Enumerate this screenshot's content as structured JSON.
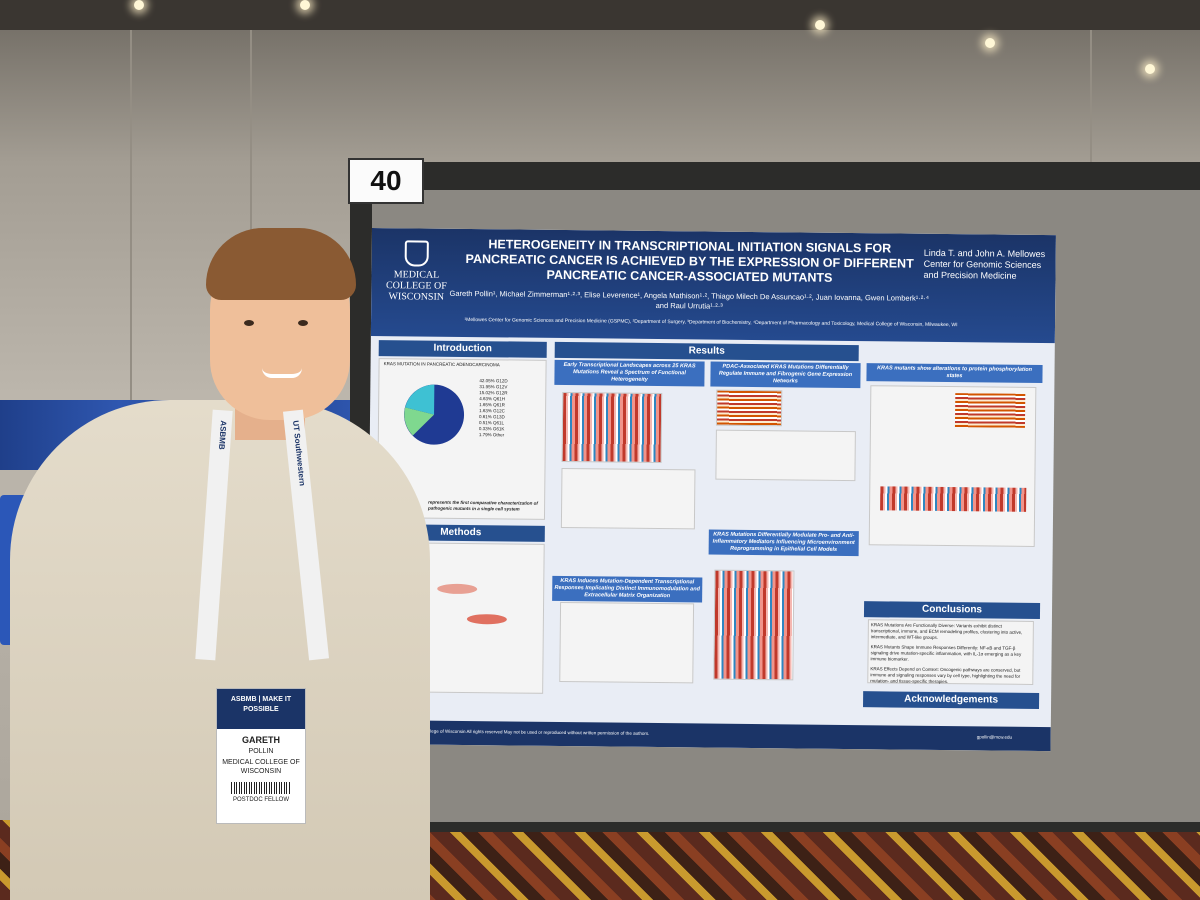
{
  "booth": {
    "number": "40"
  },
  "poster": {
    "title": "HETEROGENEITY IN TRANSCRIPTIONAL INITIATION SIGNALS FOR PANCREATIC CANCER IS ACHIEVED BY THE EXPRESSION OF DIFFERENT PANCREATIC CANCER-ASSOCIATED MUTANTS",
    "logo_left": "MEDICAL COLLEGE OF WISCONSIN",
    "logo_right": "Linda T. and John A. Mellowes Center for Genomic Sciences and Precision Medicine",
    "authors": "Gareth Pollin¹, Michael Zimmerman¹·²·³, Elise Leverence¹, Angela Mathison¹·², Thiago Milech De Assuncao¹·², Juan Iovanna, Gwen Lomberk¹·²·⁴ and Raul Urrutia¹·²·³",
    "affiliations": "¹Mellowes Center for Genomic Sciences and Precision Medicine (GSPMC), ²Department of Surgery, ³Department of Biochemistry, ⁴Department of Pharmacology and Toxicology, Medical College of Wisconsin, Milwaukee, WI",
    "sections": {
      "introduction": "Introduction",
      "results": "Results",
      "methods": "Methods",
      "conclusions": "Conclusions",
      "acknowledgements": "Acknowledgements"
    },
    "pie_title": "KRAS MUTATION IN PANCREATIC ADENOCARCINOMA",
    "pie_legend": [
      "42.05% G12D",
      "31.95% G12V",
      "15.02% G12R",
      "4.63% Q61H",
      "1.65% Q61R",
      "1.63% G12C",
      "0.61% G13D",
      "0.51% Q61L",
      "0.33% G61K",
      "1.79% Other"
    ],
    "sub_headers": [
      "Early Transcriptional Landscapes across 25 KRAS Mutations Reveal a Spectrum of Functional Heterogeneity",
      "PDAC-Associated KRAS Mutations Differentially Regulate Immune and Fibrogenic Gene Expression Networks",
      "KRAS mutants show alterations to protein phosphorylation states",
      "KRAS Induces Mutation-Dependent Transcriptional Responses Implicating Distinct Immunomodulation and Extracellular Matrix Organization",
      "KRAS Mutations Differentially Modulate Pro- and Anti-Inflammatory Mediators Influencing Microenvironment Reprogramming in Epithelial Cell Models"
    ],
    "intro_highlight": "represents the first comparative characterization of pathogenic mutants in a single cell system",
    "conclusions": [
      "KRAS Mutations Are Functionally Diverse: Variants exhibit distinct transcriptional, immune, and ECM remodeling profiles, clustering into active, intermediate, and WT-like groups.",
      "KRAS Mutants Shape Immune Responses Differently: NF-κB and TGF-β signaling drive mutation-specific inflammation, with IL-1α emerging as a key immune biomarker.",
      "KRAS Effects Depend on Context: Oncogenic pathways are conserved, but immune and signaling responses vary by cell type, highlighting the need for mutation- and tissue-specific therapies."
    ],
    "footer": "Medical College of Wisconsin All rights reserved   May not be used or reproduced without written permission of the authors.",
    "email": "gpollin@mcw.edu"
  },
  "badge": {
    "org": "ASBMB | MAKE IT POSSIBLE",
    "first_name": "GARETH",
    "last_name": "POLLIN",
    "institution": "MEDICAL COLLEGE OF WISCONSIN",
    "role": "POSTDOC FELLOW"
  },
  "lanyard": {
    "left": "ASBMB",
    "right": "UT Southwestern"
  }
}
